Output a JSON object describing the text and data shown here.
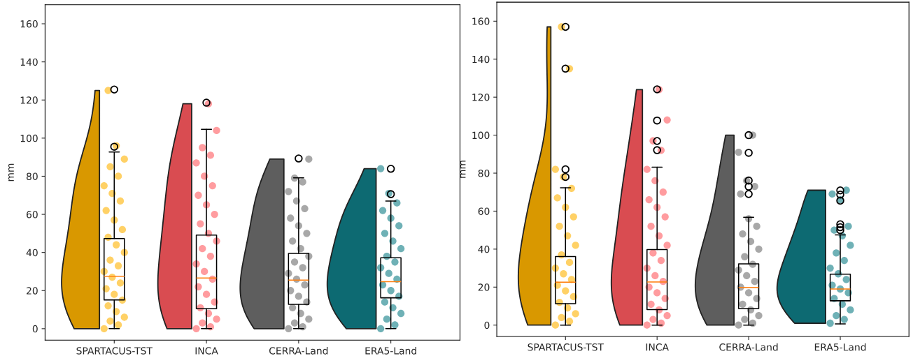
{
  "chart_data": [
    {
      "type": "box",
      "ylabel": "mm",
      "categories": [
        "SPARTACUS-TST",
        "INCA",
        "CERRA-Land",
        "ERA5-Land"
      ],
      "ylim": [
        -6,
        170
      ],
      "yticks": [
        0,
        20,
        40,
        60,
        80,
        100,
        120,
        140,
        160
      ],
      "grid": false,
      "boxes": [
        {
          "low": 0,
          "q1": 15.1,
          "median": 27.5,
          "q3": 47.3,
          "high": 92.7,
          "outliers": [
            95.5,
            125.5
          ]
        },
        {
          "low": 0,
          "q1": 10.5,
          "median": 26.6,
          "q3": 49.1,
          "high": 104.6,
          "outliers": [
            118.6
          ]
        },
        {
          "low": 0,
          "q1": 12.8,
          "median": 25.5,
          "q3": 39.5,
          "high": 79.2,
          "outliers": [
            89.3
          ]
        },
        {
          "low": 0,
          "q1": 16.2,
          "median": 24.7,
          "q3": 37.2,
          "high": 67,
          "outliers": [
            70.6,
            83.9
          ]
        }
      ],
      "series": [
        {
          "type": "scatter",
          "color": "#ffb300",
          "x": [
            "SPARTACUS-TST",
            "SPARTACUS-TST",
            "SPARTACUS-TST",
            "SPARTACUS-TST",
            "SPARTACUS-TST",
            "SPARTACUS-TST",
            "SPARTACUS-TST",
            "SPARTACUS-TST",
            "SPARTACUS-TST",
            "SPARTACUS-TST",
            "SPARTACUS-TST",
            "SPARTACUS-TST",
            "SPARTACUS-TST",
            "SPARTACUS-TST",
            "SPARTACUS-TST",
            "SPARTACUS-TST",
            "SPARTACUS-TST",
            "SPARTACUS-TST",
            "SPARTACUS-TST",
            "SPARTACUS-TST",
            "SPARTACUS-TST",
            "SPARTACUS-TST",
            "SPARTACUS-TST",
            "SPARTACUS-TST",
            "SPARTACUS-TST",
            "SPARTACUS-TST",
            "SPARTACUS-TST",
            "SPARTACUS-TST"
          ],
          "values": [
            0,
            2,
            4,
            6,
            9,
            12,
            15,
            18,
            21,
            24,
            27,
            30,
            33,
            36,
            40,
            44,
            48,
            52,
            57,
            62,
            67,
            71,
            75,
            80,
            85,
            89,
            96,
            125
          ]
        },
        {
          "type": "scatter",
          "color": "#ff5a5f",
          "x": [
            "INCA",
            "INCA",
            "INCA",
            "INCA",
            "INCA",
            "INCA",
            "INCA",
            "INCA",
            "INCA",
            "INCA",
            "INCA",
            "INCA",
            "INCA",
            "INCA",
            "INCA",
            "INCA",
            "INCA",
            "INCA",
            "INCA",
            "INCA",
            "INCA",
            "INCA",
            "INCA",
            "INCA",
            "INCA",
            "INCA",
            "INCA"
          ],
          "values": [
            0,
            1,
            3,
            5,
            8,
            11,
            14,
            18,
            22,
            26,
            30,
            34,
            38,
            42,
            46,
            50,
            55,
            60,
            65,
            70,
            75,
            80,
            87,
            91,
            95,
            104,
            118
          ]
        },
        {
          "type": "scatter",
          "color": "#6e6e6e",
          "x": [
            "CERRA-Land",
            "CERRA-Land",
            "CERRA-Land",
            "CERRA-Land",
            "CERRA-Land",
            "CERRA-Land",
            "CERRA-Land",
            "CERRA-Land",
            "CERRA-Land",
            "CERRA-Land",
            "CERRA-Land",
            "CERRA-Land",
            "CERRA-Land",
            "CERRA-Land",
            "CERRA-Land",
            "CERRA-Land",
            "CERRA-Land",
            "CERRA-Land",
            "CERRA-Land",
            "CERRA-Land",
            "CERRA-Land",
            "CERRA-Land",
            "CERRA-Land",
            "CERRA-Land",
            "CERRA-Land",
            "CERRA-Land"
          ],
          "values": [
            0,
            1,
            3,
            5,
            8,
            11,
            14,
            17,
            20,
            23,
            26,
            29,
            32,
            35,
            38,
            42,
            46,
            50,
            54,
            58,
            63,
            67,
            72,
            77,
            79,
            89
          ]
        },
        {
          "type": "scatter",
          "color": "#0f7d86",
          "x": [
            "ERA5-Land",
            "ERA5-Land",
            "ERA5-Land",
            "ERA5-Land",
            "ERA5-Land",
            "ERA5-Land",
            "ERA5-Land",
            "ERA5-Land",
            "ERA5-Land",
            "ERA5-Land",
            "ERA5-Land",
            "ERA5-Land",
            "ERA5-Land",
            "ERA5-Land",
            "ERA5-Land",
            "ERA5-Land",
            "ERA5-Land",
            "ERA5-Land",
            "ERA5-Land",
            "ERA5-Land",
            "ERA5-Land",
            "ERA5-Land",
            "ERA5-Land"
          ],
          "values": [
            0,
            2,
            5,
            8,
            11,
            14,
            17,
            20,
            23,
            26,
            29,
            32,
            35,
            38,
            42,
            46,
            50,
            54,
            58,
            62,
            66,
            71,
            84
          ]
        }
      ]
    },
    {
      "type": "box",
      "ylabel": "mm",
      "categories": [
        "SPARTACUS-TST",
        "INCA",
        "CERRA-Land",
        "ERA5-Land"
      ],
      "ylim": [
        -6,
        170
      ],
      "yticks": [
        0,
        20,
        40,
        60,
        80,
        100,
        120,
        140,
        160
      ],
      "grid": false,
      "boxes": [
        {
          "low": 0,
          "q1": 11.3,
          "median": 22.6,
          "q3": 36.1,
          "high": 72.3,
          "outliers": [
            78,
            82,
            135,
            157
          ]
        },
        {
          "low": 0,
          "q1": 8.2,
          "median": 22.7,
          "q3": 39.8,
          "high": 83.1,
          "outliers": [
            92.1,
            96.9,
            107.7,
            124.1
          ]
        },
        {
          "low": 0,
          "q1": 8.7,
          "median": 19.8,
          "q3": 32.2,
          "high": 56.8,
          "outliers": [
            69,
            72.9,
            76.1,
            90.7,
            100
          ]
        },
        {
          "low": 0.6,
          "q1": 12.8,
          "median": 19,
          "q3": 26.8,
          "high": 47.5,
          "outliers": [
            50,
            51.5,
            53.1,
            65.5,
            68.7,
            70.9
          ]
        }
      ],
      "series": [
        {
          "type": "scatter",
          "color": "#ffb300",
          "x": [
            "SPARTACUS-TST",
            "SPARTACUS-TST",
            "SPARTACUS-TST",
            "SPARTACUS-TST",
            "SPARTACUS-TST",
            "SPARTACUS-TST",
            "SPARTACUS-TST",
            "SPARTACUS-TST",
            "SPARTACUS-TST",
            "SPARTACUS-TST",
            "SPARTACUS-TST",
            "SPARTACUS-TST",
            "SPARTACUS-TST",
            "SPARTACUS-TST",
            "SPARTACUS-TST",
            "SPARTACUS-TST",
            "SPARTACUS-TST",
            "SPARTACUS-TST",
            "SPARTACUS-TST",
            "SPARTACUS-TST",
            "SPARTACUS-TST",
            "SPARTACUS-TST",
            "SPARTACUS-TST",
            "SPARTACUS-TST",
            "SPARTACUS-TST"
          ],
          "values": [
            0,
            2,
            4,
            6,
            9,
            12,
            15,
            18,
            21,
            24,
            27,
            30,
            33,
            37,
            42,
            47,
            52,
            57,
            62,
            67,
            72,
            78,
            82,
            135,
            157
          ]
        },
        {
          "type": "scatter",
          "color": "#ff5a5f",
          "x": [
            "INCA",
            "INCA",
            "INCA",
            "INCA",
            "INCA",
            "INCA",
            "INCA",
            "INCA",
            "INCA",
            "INCA",
            "INCA",
            "INCA",
            "INCA",
            "INCA",
            "INCA",
            "INCA",
            "INCA",
            "INCA",
            "INCA",
            "INCA",
            "INCA",
            "INCA",
            "INCA",
            "INCA",
            "INCA",
            "INCA",
            "INCA"
          ],
          "values": [
            0,
            1,
            3,
            5,
            8,
            11,
            14,
            17,
            20,
            23,
            26,
            30,
            34,
            38,
            42,
            47,
            52,
            57,
            62,
            66,
            70,
            76,
            82,
            92,
            97,
            108,
            124
          ]
        },
        {
          "type": "scatter",
          "color": "#6e6e6e",
          "x": [
            "CERRA-Land",
            "CERRA-Land",
            "CERRA-Land",
            "CERRA-Land",
            "CERRA-Land",
            "CERRA-Land",
            "CERRA-Land",
            "CERRA-Land",
            "CERRA-Land",
            "CERRA-Land",
            "CERRA-Land",
            "CERRA-Land",
            "CERRA-Land",
            "CERRA-Land",
            "CERRA-Land",
            "CERRA-Land",
            "CERRA-Land",
            "CERRA-Land",
            "CERRA-Land",
            "CERRA-Land",
            "CERRA-Land",
            "CERRA-Land",
            "CERRA-Land",
            "CERRA-Land"
          ],
          "values": [
            0,
            1,
            3,
            5,
            8,
            11,
            14,
            17,
            20,
            23,
            26,
            29,
            32,
            36,
            40,
            44,
            48,
            52,
            56,
            69,
            73,
            76,
            91,
            100
          ]
        },
        {
          "type": "scatter",
          "color": "#0f7d86",
          "x": [
            "ERA5-Land",
            "ERA5-Land",
            "ERA5-Land",
            "ERA5-Land",
            "ERA5-Land",
            "ERA5-Land",
            "ERA5-Land",
            "ERA5-Land",
            "ERA5-Land",
            "ERA5-Land",
            "ERA5-Land",
            "ERA5-Land",
            "ERA5-Land",
            "ERA5-Land",
            "ERA5-Land",
            "ERA5-Land",
            "ERA5-Land",
            "ERA5-Land",
            "ERA5-Land",
            "ERA5-Land",
            "ERA5-Land"
          ],
          "values": [
            1,
            3,
            5,
            8,
            11,
            14,
            17,
            19,
            21,
            24,
            27,
            30,
            34,
            38,
            42,
            47,
            50,
            52,
            66,
            69,
            71
          ]
        }
      ]
    }
  ]
}
